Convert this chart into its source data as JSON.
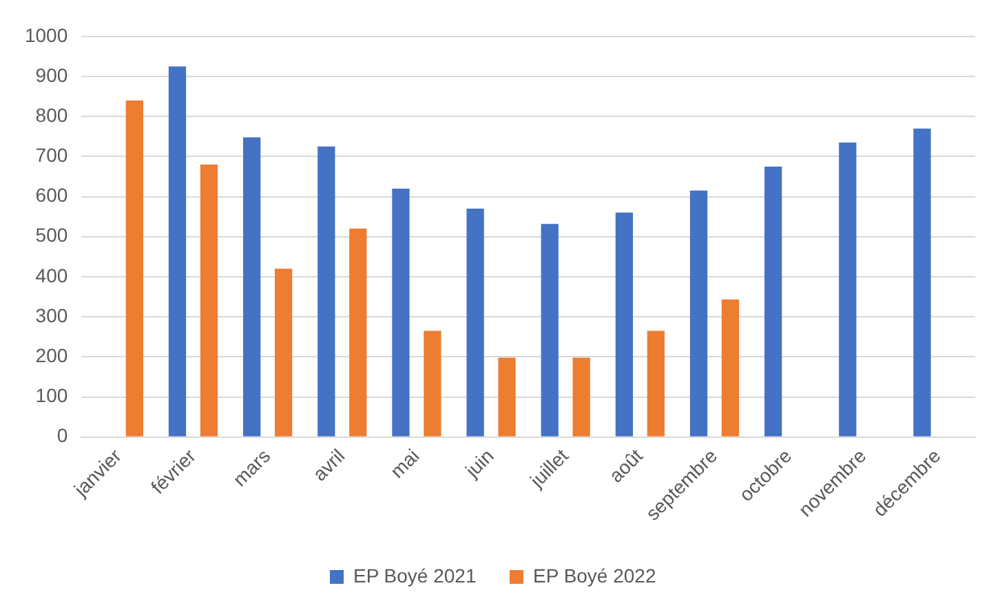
{
  "chart_data": {
    "type": "bar",
    "categories": [
      "janvier",
      "février",
      "mars",
      "avril",
      "mai",
      "juin",
      "juillet",
      "août",
      "septembre",
      "octobre",
      "novembre",
      "décembre"
    ],
    "series": [
      {
        "name": "EP Boyé 2021",
        "color": "#4472c4",
        "values": [
          null,
          925,
          748,
          725,
          620,
          570,
          532,
          560,
          615,
          675,
          735,
          770
        ]
      },
      {
        "name": "EP Boyé 2022",
        "color": "#ed7d31",
        "values": [
          840,
          680,
          420,
          520,
          265,
          198,
          198,
          265,
          343,
          null,
          null,
          null
        ]
      }
    ],
    "ylim": [
      0,
      1000
    ],
    "yticks": [
      0,
      100,
      200,
      300,
      400,
      500,
      600,
      700,
      800,
      900,
      1000
    ],
    "grid": "y",
    "legend": "bottom"
  }
}
